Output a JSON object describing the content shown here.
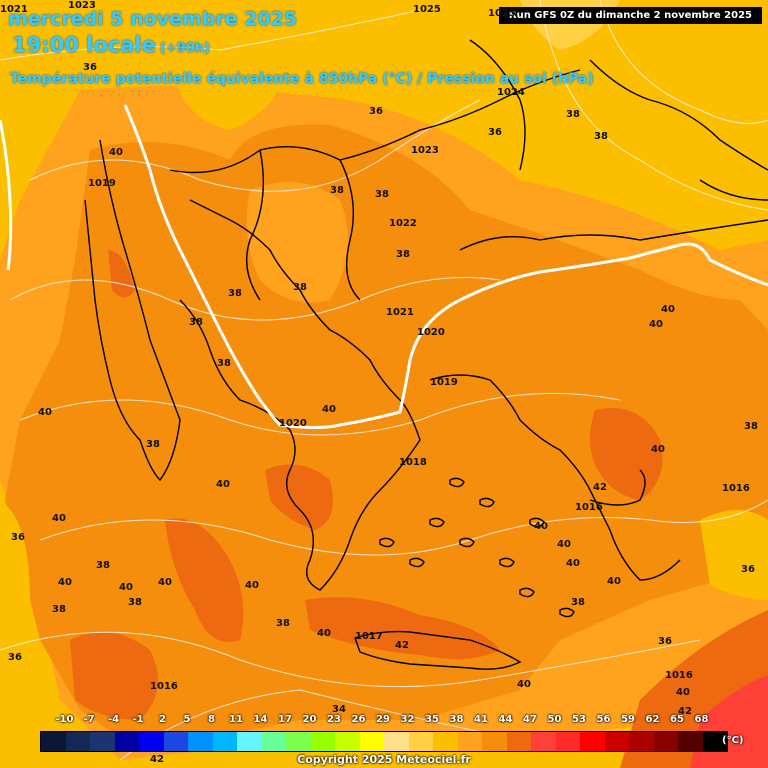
{
  "header": {
    "date": "mercredi 5 novembre 2025",
    "time": "19:00 locale",
    "lead": "(+90h)",
    "subtitle": "Température potentielle équivalente à 850hPa (°C) / Pression au sol (hPa)",
    "run": "Run GFS 0Z du dimanche 2 novembre 2025"
  },
  "colors": {
    "ocean_band_36": "#fbbf00",
    "band_38": "#ffa31f",
    "band_40": "#f58e0c",
    "band_42": "#ee6a10",
    "band_45": "#e54d14",
    "band_50": "#ff4036",
    "coastline": "#000000",
    "isobar": "#f4f4f4",
    "front_line": "#ffffff"
  },
  "pressure_labels": [
    "1025",
    "1025",
    "1024",
    "1023",
    "1022",
    "1021",
    "1020",
    "1020",
    "1019",
    "1019",
    "1018",
    "1017",
    "1016",
    "1016",
    "1016",
    "1016",
    "1023",
    "1021"
  ],
  "theta_labels": [
    "36",
    "36",
    "36",
    "38",
    "38",
    "38",
    "38",
    "38",
    "38",
    "38",
    "38",
    "38",
    "38",
    "38",
    "38",
    "38",
    "38",
    "40",
    "40",
    "40",
    "40",
    "40",
    "40",
    "40",
    "40",
    "40",
    "40",
    "40",
    "40",
    "40",
    "40",
    "40",
    "40",
    "40",
    "42",
    "42",
    "42",
    "36",
    "36",
    "36",
    "36",
    "38",
    "38",
    "40",
    "40",
    "34"
  ],
  "legend": {
    "ticks": [
      "-10",
      "-7",
      "-4",
      "-1",
      "2",
      "5",
      "8",
      "11",
      "14",
      "17",
      "20",
      "23",
      "26",
      "29",
      "32",
      "35",
      "38",
      "41",
      "44",
      "47",
      "50",
      "53",
      "56",
      "59",
      "62",
      "65",
      "68"
    ],
    "colors": [
      "#0c1738",
      "#132856",
      "#1a3474",
      "#0000a5",
      "#0000ef",
      "#1a48e0",
      "#0090ff",
      "#00b6ff",
      "#66f5ff",
      "#66ff99",
      "#7dff4d",
      "#96ff00",
      "#c8ff00",
      "#ffff00",
      "#ffe08a",
      "#ffd044",
      "#fbbf00",
      "#ffa31f",
      "#f58e0c",
      "#ee6a10",
      "#ff4036",
      "#ff2b2b",
      "#ff0000",
      "#cc0000",
      "#aa0000",
      "#880000",
      "#550000",
      "#000000"
    ],
    "unit": "(°C)"
  },
  "bottom_label": "42",
  "copyright": "Copyright 2025 Meteociel.fr"
}
